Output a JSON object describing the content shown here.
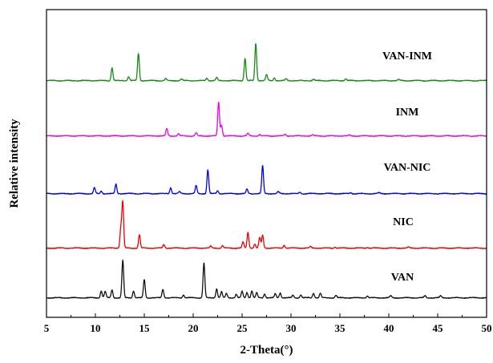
{
  "chart_data": {
    "type": "line",
    "xlabel": "2-Theta(°)",
    "ylabel": "Relative intensity",
    "xlim": [
      5,
      50
    ],
    "xticks": [
      5,
      10,
      15,
      20,
      25,
      30,
      35,
      40,
      45,
      50
    ],
    "grid": false,
    "y_ticks_shown": false,
    "series": [
      {
        "name": "VAN-INM",
        "color": "#138a13",
        "peaks": [
          [
            11.7,
            0.26
          ],
          [
            13.4,
            0.08
          ],
          [
            14.4,
            0.55
          ],
          [
            17.2,
            0.04
          ],
          [
            18.8,
            0.03
          ],
          [
            21.4,
            0.05
          ],
          [
            22.4,
            0.06
          ],
          [
            25.3,
            0.45
          ],
          [
            26.4,
            0.75
          ],
          [
            27.5,
            0.12
          ],
          [
            28.3,
            0.06
          ],
          [
            29.5,
            0.04
          ],
          [
            32.3,
            0.03
          ],
          [
            35.6,
            0.04
          ],
          [
            41.0,
            0.02
          ]
        ]
      },
      {
        "name": "INM",
        "color": "#ee00ee",
        "peaks": [
          [
            17.3,
            0.15
          ],
          [
            18.5,
            0.04
          ],
          [
            20.3,
            0.06
          ],
          [
            22.6,
            0.68
          ],
          [
            22.9,
            0.22
          ],
          [
            25.6,
            0.05
          ],
          [
            26.8,
            0.03
          ],
          [
            29.4,
            0.03
          ],
          [
            32.2,
            0.02
          ],
          [
            36.0,
            0.02
          ]
        ]
      },
      {
        "name": "VAN-NIC",
        "color": "#0000ee",
        "peaks": [
          [
            9.9,
            0.12
          ],
          [
            10.6,
            0.05
          ],
          [
            12.1,
            0.19
          ],
          [
            17.7,
            0.12
          ],
          [
            18.6,
            0.04
          ],
          [
            20.3,
            0.16
          ],
          [
            21.5,
            0.48
          ],
          [
            22.5,
            0.06
          ],
          [
            25.5,
            0.09
          ],
          [
            27.1,
            0.56
          ],
          [
            28.7,
            0.04
          ],
          [
            30.9,
            0.03
          ],
          [
            36.1,
            0.02
          ],
          [
            39.0,
            0.02
          ]
        ]
      },
      {
        "name": "NIC",
        "color": "#ee0000",
        "peaks": [
          [
            12.6,
            0.38
          ],
          [
            12.8,
            0.92
          ],
          [
            14.5,
            0.27
          ],
          [
            17.0,
            0.07
          ],
          [
            21.8,
            0.04
          ],
          [
            23.0,
            0.05
          ],
          [
            25.1,
            0.12
          ],
          [
            25.6,
            0.32
          ],
          [
            26.3,
            0.08
          ],
          [
            26.8,
            0.21
          ],
          [
            27.1,
            0.26
          ],
          [
            29.3,
            0.06
          ],
          [
            32.0,
            0.03
          ],
          [
            34.5,
            0.02
          ],
          [
            37.8,
            0.02
          ],
          [
            42.0,
            0.02
          ]
        ]
      },
      {
        "name": "VAN",
        "color": "#111111",
        "peaks": [
          [
            10.6,
            0.14
          ],
          [
            11.0,
            0.13
          ],
          [
            11.7,
            0.16
          ],
          [
            12.8,
            0.75
          ],
          [
            13.9,
            0.14
          ],
          [
            15.0,
            0.37
          ],
          [
            16.9,
            0.17
          ],
          [
            19.0,
            0.06
          ],
          [
            21.1,
            0.7
          ],
          [
            22.4,
            0.18
          ],
          [
            22.9,
            0.12
          ],
          [
            23.4,
            0.09
          ],
          [
            24.4,
            0.07
          ],
          [
            25.0,
            0.13
          ],
          [
            25.5,
            0.11
          ],
          [
            26.0,
            0.14
          ],
          [
            26.5,
            0.1
          ],
          [
            27.3,
            0.08
          ],
          [
            28.4,
            0.08
          ],
          [
            28.9,
            0.1
          ],
          [
            30.2,
            0.05
          ],
          [
            31.0,
            0.06
          ],
          [
            32.3,
            0.09
          ],
          [
            33.0,
            0.09
          ],
          [
            34.6,
            0.05
          ],
          [
            37.8,
            0.04
          ],
          [
            40.2,
            0.04
          ],
          [
            43.7,
            0.04
          ],
          [
            45.3,
            0.04
          ]
        ]
      }
    ]
  }
}
